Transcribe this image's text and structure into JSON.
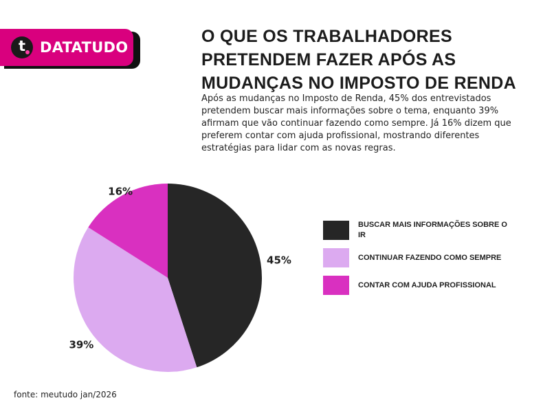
{
  "brand": {
    "name": "DATATUDO",
    "logo_letter": "t",
    "color": "#d9007e"
  },
  "title": "O QUE OS TRABALHADORES PRETENDEM FAZER APÓS AS MUDANÇAS NO IMPOSTO DE RENDA",
  "description": "Após as mudanças no Imposto de Renda, 45% dos entrevistados pretendem buscar mais informações sobre o tema, enquanto 39% afirmam que vão continuar fazendo como sempre. Já 16% dizem que preferem contar com ajuda profissional, mostrando diferentes estratégias para lidar com as novas regras.",
  "source": "fonte: meutudo jan/2026",
  "chart_data": {
    "type": "pie",
    "categories": [
      "BUSCAR MAIS INFORMAÇÕES SOBRE O IR",
      "CONTINUAR FAZENDO COMO SEMPRE",
      "CONTAR COM AJUDA PROFISSIONAL"
    ],
    "values": [
      45,
      39,
      16
    ],
    "labels": [
      "45%",
      "39%",
      "16%"
    ],
    "colors": [
      "#262626",
      "#dcaaf0",
      "#d930c0"
    ],
    "legend": "right"
  }
}
